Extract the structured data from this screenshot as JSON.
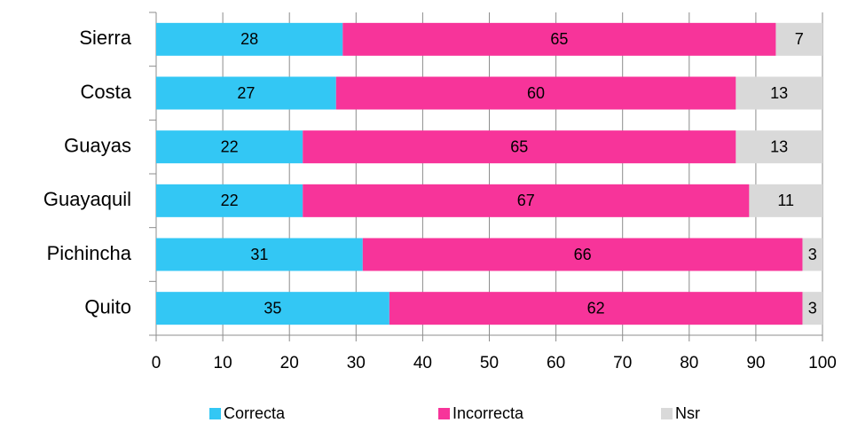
{
  "chart_data": {
    "type": "bar",
    "orientation": "horizontal",
    "stacked": true,
    "categories": [
      "Sierra",
      "Costa",
      "Guayas",
      "Guayaquil",
      "Pichincha",
      "Quito"
    ],
    "series": [
      {
        "name": "Correcta",
        "color": "#33c7f4",
        "values": [
          28,
          27,
          22,
          22,
          31,
          35
        ]
      },
      {
        "name": "Incorrecta",
        "color": "#f7349a",
        "values": [
          65,
          60,
          65,
          67,
          66,
          62
        ]
      },
      {
        "name": "Nsr",
        "color": "#d9d9d9",
        "values": [
          7,
          13,
          13,
          11,
          3,
          3
        ]
      }
    ],
    "xlim": [
      0,
      100
    ],
    "xticks": [
      0,
      10,
      20,
      30,
      40,
      50,
      60,
      70,
      80,
      90,
      100
    ],
    "grid": true,
    "legend": "bottom"
  }
}
